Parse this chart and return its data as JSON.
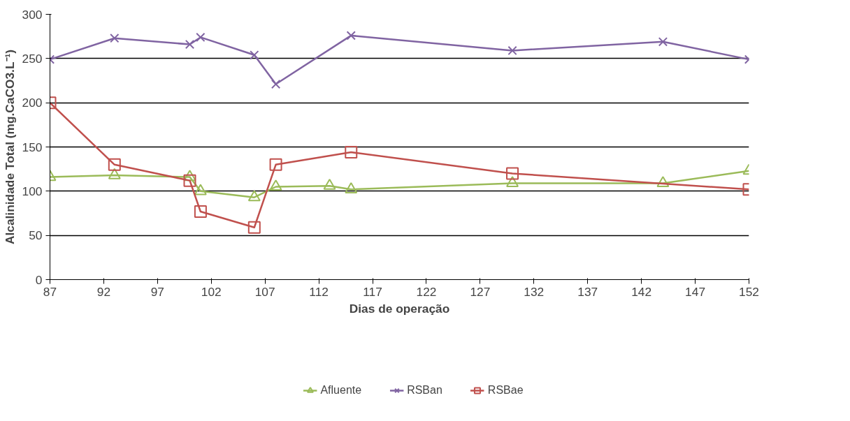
{
  "chart_data": {
    "type": "line",
    "xlabel": "Dias de operação",
    "ylabel": "Alcalinidade Total (mg.CaCO3.L⁻¹)",
    "xlim": [
      87,
      152
    ],
    "xticks": [
      87,
      92,
      97,
      102,
      107,
      112,
      117,
      122,
      127,
      132,
      137,
      142,
      147,
      152
    ],
    "ylim": [
      0,
      300
    ],
    "yticks": [
      0,
      50,
      100,
      150,
      200,
      250,
      300
    ],
    "grid": "y",
    "legend": "bottom",
    "series": [
      {
        "name": "Afluente",
        "color": "#9bbb59",
        "marker": "triangle",
        "x": [
          87,
          93,
          100,
          101,
          106,
          108,
          113,
          115,
          130,
          144,
          152
        ],
        "values": [
          116,
          118,
          116,
          100,
          93,
          105,
          106,
          102,
          109,
          109,
          123
        ]
      },
      {
        "name": "RSBan",
        "color": "#8064a2",
        "marker": "cross",
        "x": [
          87,
          93,
          100,
          101,
          106,
          108,
          115,
          130,
          144,
          152
        ],
        "values": [
          249,
          273,
          266,
          274,
          254,
          221,
          276,
          259,
          269,
          249
        ]
      },
      {
        "name": "RSBae",
        "color": "#c0504d",
        "marker": "square",
        "x": [
          87,
          93,
          100,
          101,
          106,
          108,
          115,
          130,
          152
        ],
        "values": [
          200,
          130,
          112,
          77,
          59,
          130,
          144,
          120,
          102
        ]
      }
    ]
  }
}
